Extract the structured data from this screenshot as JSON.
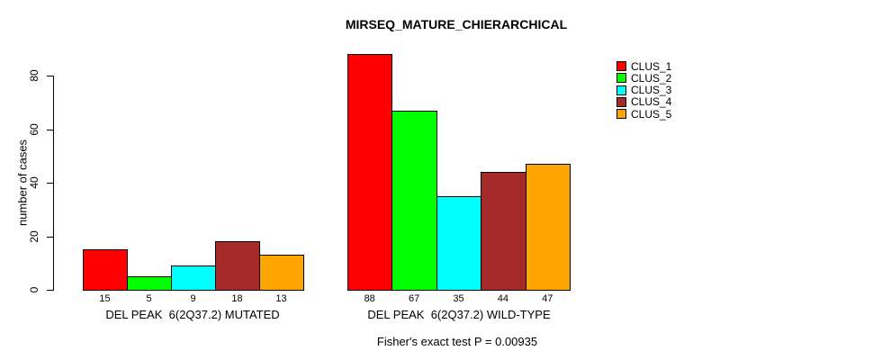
{
  "chart_data": {
    "type": "bar",
    "title": "MIRSEQ_MATURE_CHIERARCHICAL",
    "ylabel": "number of cases",
    "xlabel": "",
    "ylim": [
      0,
      80
    ],
    "yticks": [
      0,
      20,
      40,
      60,
      80
    ],
    "grid": false,
    "legend_position": "top-right",
    "categories": [
      "DEL PEAK  6(2Q37.2) MUTATED",
      "DEL PEAK  6(2Q37.2) WILD-TYPE"
    ],
    "series": [
      {
        "name": "CLUS_1",
        "color": "#FF0000",
        "values": [
          15,
          88
        ]
      },
      {
        "name": "CLUS_2",
        "color": "#00FF00",
        "values": [
          5,
          67
        ]
      },
      {
        "name": "CLUS_3",
        "color": "#00FFFF",
        "values": [
          9,
          35
        ]
      },
      {
        "name": "CLUS_4",
        "color": "#A52A2A",
        "values": [
          18,
          44
        ]
      },
      {
        "name": "CLUS_5",
        "color": "#FFA500",
        "values": [
          13,
          47
        ]
      }
    ],
    "bar_value_labels": [
      [
        15,
        5,
        9,
        18,
        13
      ],
      [
        88,
        67,
        35,
        44,
        47
      ]
    ],
    "note": "Fisher's exact test P = 0.00935"
  },
  "colors": {
    "background": "#FFFFFF",
    "axis": "#000000",
    "text": "#000000"
  }
}
